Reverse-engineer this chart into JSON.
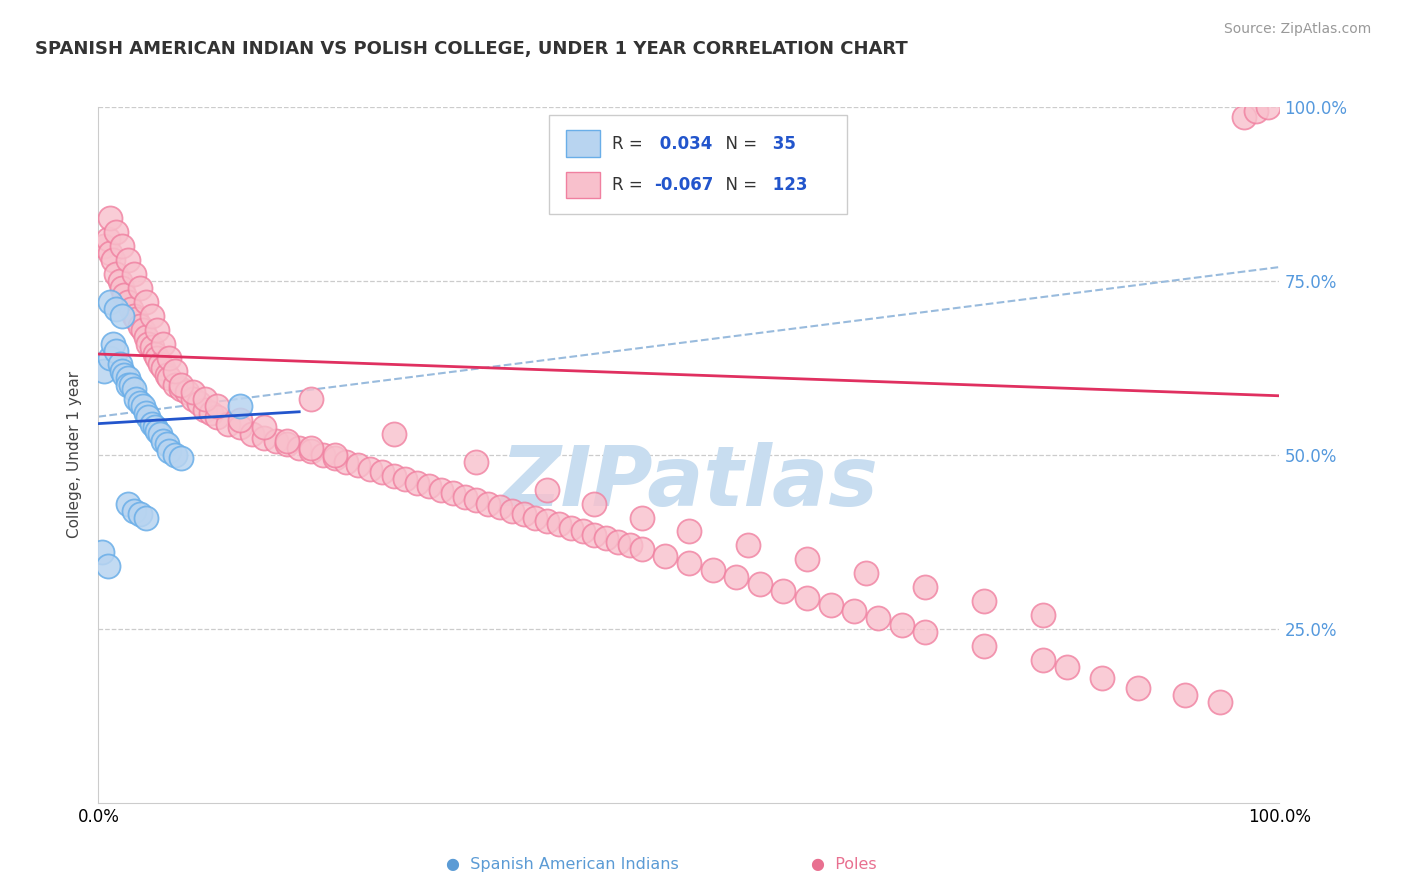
{
  "title": "SPANISH AMERICAN INDIAN VS POLISH COLLEGE, UNDER 1 YEAR CORRELATION CHART",
  "source_text": "Source: ZipAtlas.com",
  "ylabel": "College, Under 1 year",
  "watermark": "ZIPatlas",
  "watermark_color": "#c8ddf0",
  "blue_dot_edge": "#6aaee8",
  "blue_dot_face": "#b8d4f0",
  "pink_dot_edge": "#f080a0",
  "pink_dot_face": "#f8c0cc",
  "trend_blue_color": "#2255cc",
  "trend_pink_color": "#e03060",
  "dashed_line_color": "#99bbdd",
  "grid_color": "#cccccc",
  "background_color": "#ffffff",
  "r_blue_text": "0.034",
  "n_blue_text": "35",
  "r_pink_text": "-0.067",
  "n_pink_text": "123",
  "legend_r_color": "#2255cc",
  "label_blue": "Spanish American Indians",
  "label_pink": "Poles",
  "bottom_label_color_blue": "#5b9bd5",
  "bottom_label_color_pink": "#e87090",
  "right_axis_color": "#5599dd",
  "xlim": [
    0,
    1
  ],
  "ylim": [
    0,
    1
  ],
  "xtick_positions": [
    0,
    1
  ],
  "xtick_labels": [
    "0.0%",
    "100.0%"
  ],
  "ytick_positions": [
    0.25,
    0.5,
    0.75,
    1.0
  ],
  "ytick_labels": [
    "25.0%",
    "50.0%",
    "75.0%",
    "100.0%"
  ],
  "blue_x": [
    0.005,
    0.01,
    0.012,
    0.015,
    0.018,
    0.02,
    0.022,
    0.025,
    0.025,
    0.028,
    0.03,
    0.032,
    0.035,
    0.038,
    0.04,
    0.042,
    0.045,
    0.048,
    0.05,
    0.052,
    0.055,
    0.058,
    0.06,
    0.065,
    0.07,
    0.01,
    0.015,
    0.02,
    0.025,
    0.03,
    0.035,
    0.04,
    0.12,
    0.003,
    0.008
  ],
  "blue_y": [
    0.62,
    0.64,
    0.66,
    0.65,
    0.63,
    0.62,
    0.615,
    0.61,
    0.6,
    0.6,
    0.595,
    0.58,
    0.575,
    0.57,
    0.56,
    0.555,
    0.545,
    0.54,
    0.535,
    0.53,
    0.52,
    0.515,
    0.505,
    0.5,
    0.495,
    0.72,
    0.71,
    0.7,
    0.43,
    0.42,
    0.415,
    0.41,
    0.57,
    0.36,
    0.34
  ],
  "pink_x": [
    0.005,
    0.008,
    0.01,
    0.012,
    0.015,
    0.018,
    0.02,
    0.022,
    0.025,
    0.028,
    0.03,
    0.032,
    0.035,
    0.038,
    0.04,
    0.042,
    0.045,
    0.048,
    0.05,
    0.052,
    0.055,
    0.058,
    0.06,
    0.065,
    0.07,
    0.075,
    0.08,
    0.085,
    0.09,
    0.095,
    0.1,
    0.11,
    0.12,
    0.13,
    0.14,
    0.15,
    0.16,
    0.17,
    0.18,
    0.19,
    0.2,
    0.21,
    0.22,
    0.23,
    0.24,
    0.25,
    0.26,
    0.27,
    0.28,
    0.29,
    0.3,
    0.31,
    0.32,
    0.33,
    0.34,
    0.35,
    0.36,
    0.37,
    0.38,
    0.39,
    0.4,
    0.41,
    0.42,
    0.43,
    0.44,
    0.45,
    0.46,
    0.48,
    0.5,
    0.52,
    0.54,
    0.56,
    0.58,
    0.6,
    0.62,
    0.64,
    0.66,
    0.68,
    0.7,
    0.75,
    0.8,
    0.82,
    0.85,
    0.88,
    0.92,
    0.95,
    0.97,
    0.98,
    0.99,
    0.18,
    0.25,
    0.32,
    0.38,
    0.42,
    0.46,
    0.5,
    0.55,
    0.6,
    0.65,
    0.7,
    0.75,
    0.8,
    0.01,
    0.015,
    0.02,
    0.025,
    0.03,
    0.035,
    0.04,
    0.045,
    0.05,
    0.055,
    0.06,
    0.065,
    0.07,
    0.08,
    0.09,
    0.1,
    0.12,
    0.14,
    0.16,
    0.18,
    0.2
  ],
  "pink_y": [
    0.8,
    0.81,
    0.79,
    0.78,
    0.76,
    0.75,
    0.74,
    0.73,
    0.72,
    0.71,
    0.7,
    0.695,
    0.685,
    0.68,
    0.67,
    0.66,
    0.655,
    0.645,
    0.64,
    0.63,
    0.625,
    0.615,
    0.61,
    0.6,
    0.595,
    0.59,
    0.58,
    0.575,
    0.565,
    0.56,
    0.555,
    0.545,
    0.54,
    0.53,
    0.525,
    0.52,
    0.515,
    0.51,
    0.505,
    0.5,
    0.495,
    0.49,
    0.485,
    0.48,
    0.475,
    0.47,
    0.465,
    0.46,
    0.455,
    0.45,
    0.445,
    0.44,
    0.435,
    0.43,
    0.425,
    0.42,
    0.415,
    0.41,
    0.405,
    0.4,
    0.395,
    0.39,
    0.385,
    0.38,
    0.375,
    0.37,
    0.365,
    0.355,
    0.345,
    0.335,
    0.325,
    0.315,
    0.305,
    0.295,
    0.285,
    0.275,
    0.265,
    0.255,
    0.245,
    0.225,
    0.205,
    0.195,
    0.18,
    0.165,
    0.155,
    0.145,
    0.985,
    0.995,
    1.0,
    0.58,
    0.53,
    0.49,
    0.45,
    0.43,
    0.41,
    0.39,
    0.37,
    0.35,
    0.33,
    0.31,
    0.29,
    0.27,
    0.84,
    0.82,
    0.8,
    0.78,
    0.76,
    0.74,
    0.72,
    0.7,
    0.68,
    0.66,
    0.64,
    0.62,
    0.6,
    0.59,
    0.58,
    0.57,
    0.55,
    0.54,
    0.52,
    0.51,
    0.5
  ]
}
